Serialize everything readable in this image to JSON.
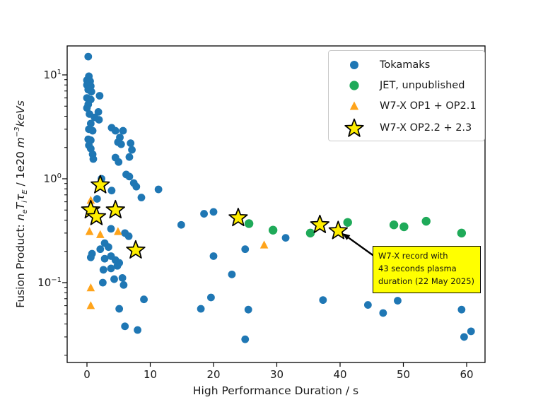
{
  "figure": {
    "background": "#ffffff",
    "text_color": "#1a1a1a"
  },
  "chart_data": {
    "type": "scatter",
    "title": "",
    "xlabel": "High Performance Duration / s",
    "ylabel_plain": "Fusion Product: neTiτE / 1e20 m⁻³keVs",
    "ylabel_segments": [
      {
        "t": "Fusion Product:  ",
        "mode": "normal"
      },
      {
        "t": "n",
        "mode": "italic"
      },
      {
        "t": "e",
        "mode": "sub"
      },
      {
        "t": "T",
        "mode": "italic"
      },
      {
        "t": "i",
        "mode": "sub"
      },
      {
        "t": "τ",
        "mode": "italic"
      },
      {
        "t": "E",
        "mode": "sub"
      },
      {
        "t": " /  1e20 ",
        "mode": "normal"
      },
      {
        "t": "m",
        "mode": "italic"
      },
      {
        "t": "−3",
        "mode": "sup"
      },
      {
        "t": "keVs",
        "mode": "italic"
      }
    ],
    "x_scale": "linear",
    "y_scale": "log",
    "xlim": [
      -3.1,
      62.9
    ],
    "ylim": [
      0.017,
      19.0
    ],
    "x_ticks": [
      0,
      10,
      20,
      30,
      40,
      50,
      60
    ],
    "y_ticks": [
      {
        "value": 10,
        "base": "10",
        "exp": "1"
      },
      {
        "value": 1,
        "base": "10",
        "exp": "0"
      },
      {
        "value": 0.1,
        "base": "10",
        "exp": "−1"
      }
    ],
    "grid": false,
    "legend_position": "upper right",
    "series": [
      {
        "name": "Tokamaks",
        "marker": "circle",
        "color": "#1f77b4",
        "size": 5.4,
        "points": [
          [
            0.2,
            15.0
          ],
          [
            0.3,
            9.7
          ],
          [
            0.0,
            8.9
          ],
          [
            0.5,
            8.7
          ],
          [
            0.0,
            8.0
          ],
          [
            0.6,
            7.8
          ],
          [
            0.2,
            7.2
          ],
          [
            0.7,
            6.9
          ],
          [
            2.0,
            6.3
          ],
          [
            0.0,
            6.0
          ],
          [
            0.6,
            5.8
          ],
          [
            0.2,
            5.2
          ],
          [
            0.0,
            4.8
          ],
          [
            1.8,
            4.4
          ],
          [
            0.4,
            4.2
          ],
          [
            1.2,
            3.9
          ],
          [
            1.9,
            3.7
          ],
          [
            0.6,
            3.4
          ],
          [
            3.9,
            3.1
          ],
          [
            0.3,
            3.0
          ],
          [
            0.9,
            2.9
          ],
          [
            4.5,
            2.9
          ],
          [
            5.7,
            2.9
          ],
          [
            5.2,
            2.5
          ],
          [
            0.2,
            2.4
          ],
          [
            0.6,
            2.35
          ],
          [
            4.9,
            2.25
          ],
          [
            5.4,
            2.15
          ],
          [
            6.9,
            2.2
          ],
          [
            0.3,
            2.1
          ],
          [
            0.6,
            1.95
          ],
          [
            7.1,
            1.9
          ],
          [
            0.9,
            1.72
          ],
          [
            6.7,
            1.62
          ],
          [
            4.5,
            1.6
          ],
          [
            1.0,
            1.55
          ],
          [
            5.0,
            1.45
          ],
          [
            6.2,
            1.1
          ],
          [
            6.7,
            1.05
          ],
          [
            2.3,
            1.0
          ],
          [
            7.4,
            0.91
          ],
          [
            7.8,
            0.84
          ],
          [
            11.3,
            0.79
          ],
          [
            3.9,
            0.77
          ],
          [
            8.6,
            0.66
          ],
          [
            1.6,
            0.64
          ],
          [
            20.0,
            0.48
          ],
          [
            18.5,
            0.46
          ],
          [
            14.9,
            0.36
          ],
          [
            3.8,
            0.33
          ],
          [
            6.0,
            0.3
          ],
          [
            6.6,
            0.28
          ],
          [
            31.4,
            0.27
          ],
          [
            2.8,
            0.24
          ],
          [
            3.4,
            0.22
          ],
          [
            25.0,
            0.21
          ],
          [
            2.1,
            0.21
          ],
          [
            0.8,
            0.19
          ],
          [
            20.0,
            0.18
          ],
          [
            3.8,
            0.18
          ],
          [
            0.6,
            0.175
          ],
          [
            2.8,
            0.17
          ],
          [
            4.5,
            0.165
          ],
          [
            5.1,
            0.155
          ],
          [
            4.8,
            0.145
          ],
          [
            3.8,
            0.137
          ],
          [
            2.6,
            0.133
          ],
          [
            22.9,
            0.12
          ],
          [
            5.6,
            0.111
          ],
          [
            4.3,
            0.108
          ],
          [
            2.5,
            0.1
          ],
          [
            5.8,
            0.095
          ],
          [
            19.6,
            0.072
          ],
          [
            9.0,
            0.069
          ],
          [
            37.3,
            0.068
          ],
          [
            49.1,
            0.067
          ],
          [
            44.4,
            0.061
          ],
          [
            18.0,
            0.056
          ],
          [
            5.1,
            0.056
          ],
          [
            25.5,
            0.055
          ],
          [
            59.2,
            0.055
          ],
          [
            46.8,
            0.051
          ],
          [
            6.0,
            0.038
          ],
          [
            8.0,
            0.035
          ],
          [
            60.7,
            0.034
          ],
          [
            59.6,
            0.03
          ],
          [
            25.0,
            0.0285
          ]
        ]
      },
      {
        "name": "JET, unpublished",
        "marker": "circle",
        "color": "#1faa59",
        "size": 6.2,
        "points": [
          [
            25.6,
            0.37
          ],
          [
            29.4,
            0.32
          ],
          [
            35.3,
            0.3
          ],
          [
            41.2,
            0.38
          ],
          [
            48.5,
            0.36
          ],
          [
            50.1,
            0.345
          ],
          [
            53.6,
            0.39
          ],
          [
            59.2,
            0.3
          ]
        ]
      },
      {
        "name": "W7-X OP1 + OP2.1",
        "marker": "triangle",
        "color": "#ffa41b",
        "size": 6,
        "points": [
          [
            0.6,
            0.62
          ],
          [
            0.4,
            0.31
          ],
          [
            2.1,
            0.29
          ],
          [
            4.9,
            0.31
          ],
          [
            0.6,
            0.089
          ],
          [
            0.6,
            0.06
          ],
          [
            28.0,
            0.23
          ]
        ]
      },
      {
        "name": "W7-X OP2.2 + 2.3",
        "marker": "star",
        "color": "#ffee00",
        "marker_edge": "#000000",
        "size": 13.5,
        "points": [
          [
            2.1,
            0.87
          ],
          [
            0.6,
            0.5
          ],
          [
            1.5,
            0.43
          ],
          [
            4.5,
            0.5
          ],
          [
            7.7,
            0.205
          ],
          [
            23.9,
            0.42
          ],
          [
            36.8,
            0.36
          ],
          [
            39.7,
            0.315
          ]
        ]
      }
    ]
  },
  "legend": {
    "items": [
      {
        "label": "Tokamaks",
        "marker": "circle",
        "color": "#1f77b4"
      },
      {
        "label": "JET, unpublished",
        "marker": "circle",
        "color": "#1faa59"
      },
      {
        "label": "W7-X OP1 + OP2.1",
        "marker": "triangle",
        "color": "#ffa41b"
      },
      {
        "label": "W7-X OP2.2 + 2.3",
        "marker": "star",
        "color": "#ffee00"
      }
    ]
  },
  "annotation": {
    "lines": [
      "W7-X record with",
      "43 seconds plasma",
      "duration (22 May 2025)"
    ],
    "box_color": "#ffff00",
    "border_color": "#000000",
    "arrow_color": "#000000",
    "target_point": [
      39.7,
      0.315
    ]
  }
}
